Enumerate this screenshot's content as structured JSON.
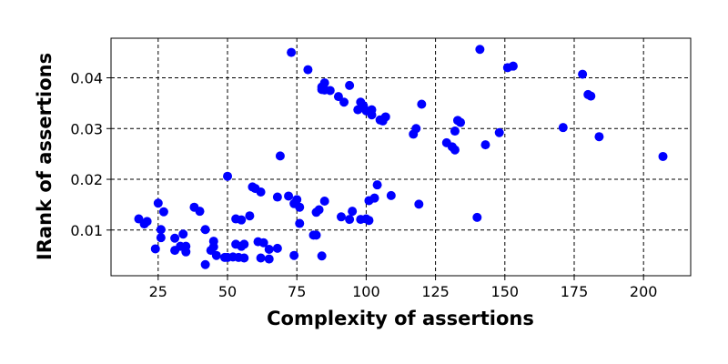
{
  "chart_data": {
    "type": "scatter",
    "title": "",
    "xlabel": "Complexity of assertions",
    "ylabel": "IRank of assertions",
    "xlim": [
      8,
      217
    ],
    "ylim": [
      0.001,
      0.0478
    ],
    "xticks": [
      25,
      50,
      75,
      100,
      125,
      150,
      175,
      200
    ],
    "yticks": [
      0.01,
      0.02,
      0.03,
      0.04
    ],
    "ytick_labels": [
      "0.01",
      "0.02",
      "0.03",
      "0.04"
    ],
    "grid": true,
    "legend": "none",
    "marker_color": "#0000ff",
    "series": [
      {
        "x": [
          18,
          20,
          21,
          24,
          25,
          26,
          26,
          27,
          31,
          31,
          33,
          34,
          35,
          35,
          38,
          40,
          42,
          42,
          44,
          45,
          45,
          46,
          49,
          50,
          50,
          52,
          53,
          53,
          54,
          55,
          55,
          56,
          56,
          58,
          59,
          60,
          61,
          62,
          62,
          63,
          65,
          65,
          68,
          68,
          69,
          72,
          73,
          74,
          74,
          75,
          76,
          76,
          79,
          81,
          82,
          82,
          83,
          84,
          84,
          84,
          85,
          85,
          85,
          87,
          90,
          91,
          92,
          94,
          94,
          95,
          97,
          98,
          98,
          99,
          100,
          100,
          101,
          101,
          102,
          102,
          103,
          104,
          105,
          106,
          107,
          109,
          117,
          118,
          119,
          120,
          129,
          131,
          132,
          132,
          133,
          134,
          140,
          141,
          143,
          148,
          151,
          153,
          171,
          178,
          180,
          181,
          184,
          207
        ],
        "y": [
          0.0122,
          0.0112,
          0.0117,
          0.0063,
          0.0153,
          0.0085,
          0.0101,
          0.0136,
          0.0084,
          0.006,
          0.0068,
          0.0092,
          0.0057,
          0.0068,
          0.0145,
          0.0137,
          0.0032,
          0.0101,
          0.006,
          0.0067,
          0.0078,
          0.005,
          0.0046,
          0.0046,
          0.0206,
          0.0047,
          0.0072,
          0.0122,
          0.0046,
          0.012,
          0.0068,
          0.0072,
          0.0045,
          0.0128,
          0.0185,
          0.0182,
          0.0077,
          0.0175,
          0.0045,
          0.0075,
          0.0043,
          0.0062,
          0.0165,
          0.0064,
          0.0246,
          0.0167,
          0.045,
          0.0152,
          0.005,
          0.016,
          0.0145,
          0.0113,
          0.0416,
          0.009,
          0.009,
          0.0135,
          0.014,
          0.0049,
          0.0377,
          0.0382,
          0.039,
          0.0157,
          0.0376,
          0.0375,
          0.0363,
          0.0126,
          0.0352,
          0.0121,
          0.0385,
          0.0137,
          0.0337,
          0.0352,
          0.0121,
          0.0345,
          0.0335,
          0.0122,
          0.0158,
          0.0119,
          0.0327,
          0.0337,
          0.0163,
          0.0189,
          0.0317,
          0.0315,
          0.0323,
          0.0168,
          0.0289,
          0.03,
          0.0151,
          0.0348,
          0.0272,
          0.0264,
          0.0295,
          0.0258,
          0.0316,
          0.0312,
          0.0125,
          0.0456,
          0.0268,
          0.0292,
          0.042,
          0.0423,
          0.0302,
          0.0407,
          0.0367,
          0.0364,
          0.0284,
          0.0245
        ]
      }
    ]
  }
}
